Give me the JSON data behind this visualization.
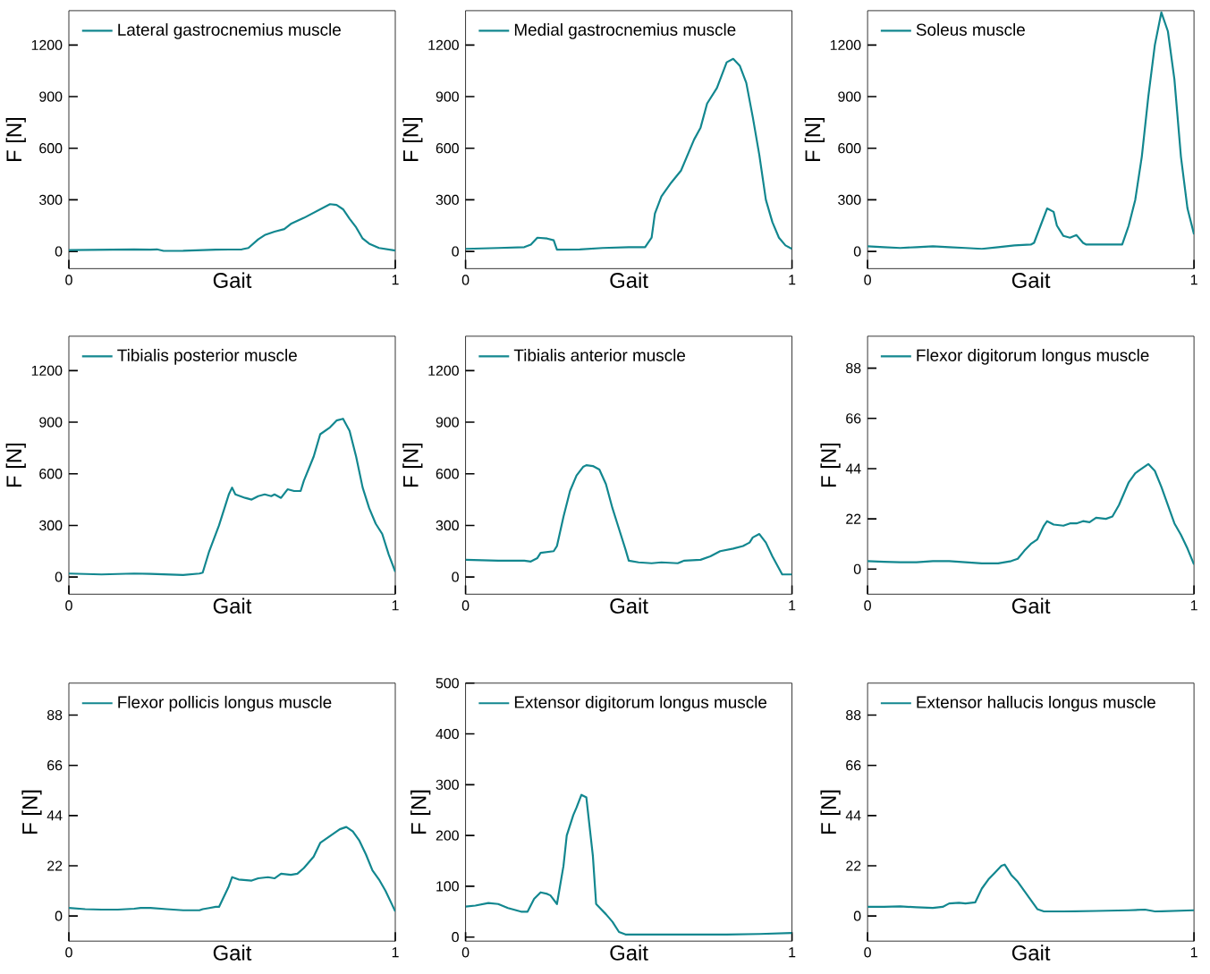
{
  "chart_data": [
    {
      "type": "line",
      "xlabel": "Gait",
      "ylabel": "F [N]",
      "xlim": [
        0,
        1
      ],
      "xticks": [
        0,
        1
      ],
      "ylim": [
        -100,
        1400
      ],
      "yticks": [
        0,
        300,
        600,
        900,
        1200
      ],
      "legend": "top left",
      "series": [
        {
          "name": "Lateral gastrocnemius muscle",
          "color": "#12878f",
          "x": [
            0,
            0.1,
            0.2,
            0.25,
            0.27,
            0.29,
            0.35,
            0.45,
            0.53,
            0.55,
            0.58,
            0.6,
            0.63,
            0.66,
            0.68,
            0.72,
            0.76,
            0.78,
            0.8,
            0.82,
            0.84,
            0.86,
            0.88,
            0.9,
            0.92,
            0.95,
            1.0
          ],
          "values": [
            8,
            10,
            12,
            10,
            12,
            3,
            4,
            10,
            12,
            20,
            70,
            95,
            115,
            130,
            160,
            195,
            235,
            255,
            275,
            270,
            245,
            190,
            140,
            75,
            45,
            20,
            5
          ]
        }
      ]
    },
    {
      "type": "line",
      "xlabel": "Gait",
      "ylabel": "F [N]",
      "xlim": [
        0,
        1
      ],
      "xticks": [
        0,
        1
      ],
      "ylim": [
        -100,
        1400
      ],
      "yticks": [
        0,
        300,
        600,
        900,
        1200
      ],
      "legend": "top left",
      "series": [
        {
          "name": "Medial gastrocnemius muscle",
          "color": "#12878f",
          "x": [
            0,
            0.1,
            0.18,
            0.2,
            0.22,
            0.25,
            0.27,
            0.28,
            0.35,
            0.42,
            0.5,
            0.55,
            0.57,
            0.58,
            0.6,
            0.63,
            0.66,
            0.68,
            0.7,
            0.72,
            0.74,
            0.77,
            0.8,
            0.82,
            0.84,
            0.86,
            0.88,
            0.9,
            0.92,
            0.94,
            0.96,
            0.98,
            1.0
          ],
          "values": [
            15,
            20,
            25,
            40,
            80,
            75,
            65,
            10,
            12,
            20,
            25,
            25,
            80,
            220,
            320,
            400,
            470,
            560,
            650,
            720,
            860,
            950,
            1100,
            1120,
            1080,
            980,
            780,
            560,
            300,
            170,
            80,
            35,
            15
          ]
        }
      ]
    },
    {
      "type": "line",
      "xlabel": "Gait",
      "ylabel": "F [N]",
      "xlim": [
        0,
        1
      ],
      "xticks": [
        0,
        1
      ],
      "ylim": [
        -100,
        1400
      ],
      "yticks": [
        0,
        300,
        600,
        900,
        1200
      ],
      "legend": "top left",
      "series": [
        {
          "name": "Soleus muscle",
          "color": "#12878f",
          "x": [
            0,
            0.05,
            0.1,
            0.15,
            0.2,
            0.25,
            0.3,
            0.35,
            0.4,
            0.45,
            0.5,
            0.51,
            0.53,
            0.55,
            0.57,
            0.58,
            0.6,
            0.62,
            0.64,
            0.66,
            0.67,
            0.72,
            0.78,
            0.8,
            0.82,
            0.84,
            0.86,
            0.88,
            0.9,
            0.92,
            0.94,
            0.96,
            0.98,
            1.0
          ],
          "values": [
            30,
            25,
            20,
            25,
            30,
            25,
            20,
            15,
            25,
            35,
            40,
            50,
            150,
            250,
            230,
            150,
            90,
            80,
            95,
            50,
            40,
            40,
            40,
            150,
            300,
            550,
            900,
            1200,
            1390,
            1280,
            1000,
            550,
            250,
            100
          ]
        }
      ]
    },
    {
      "type": "line",
      "xlabel": "Gait",
      "ylabel": "F [N]",
      "xlim": [
        0,
        1
      ],
      "xticks": [
        0,
        1
      ],
      "ylim": [
        -100,
        1400
      ],
      "yticks": [
        0,
        300,
        600,
        900,
        1200
      ],
      "legend": "top left",
      "series": [
        {
          "name": "Tibialis posterior muscle",
          "color": "#12878f",
          "x": [
            0,
            0.1,
            0.2,
            0.25,
            0.3,
            0.35,
            0.4,
            0.41,
            0.43,
            0.46,
            0.48,
            0.49,
            0.5,
            0.51,
            0.54,
            0.56,
            0.58,
            0.6,
            0.62,
            0.63,
            0.65,
            0.67,
            0.69,
            0.71,
            0.72,
            0.75,
            0.77,
            0.8,
            0.82,
            0.84,
            0.86,
            0.88,
            0.9,
            0.92,
            0.94,
            0.96,
            0.98,
            1.0
          ],
          "values": [
            20,
            15,
            20,
            18,
            15,
            12,
            20,
            25,
            150,
            300,
            420,
            480,
            520,
            480,
            460,
            450,
            470,
            480,
            470,
            480,
            460,
            510,
            500,
            500,
            560,
            700,
            830,
            870,
            910,
            920,
            850,
            700,
            520,
            400,
            310,
            250,
            130,
            30
          ]
        }
      ]
    },
    {
      "type": "line",
      "xlabel": "Gait",
      "ylabel": "F [N]",
      "xlim": [
        0,
        1
      ],
      "xticks": [
        0,
        1
      ],
      "ylim": [
        -100,
        1400
      ],
      "yticks": [
        0,
        300,
        600,
        900,
        1200
      ],
      "legend": "top left",
      "series": [
        {
          "name": "Tibialis anterior muscle",
          "color": "#12878f",
          "x": [
            0,
            0.1,
            0.18,
            0.2,
            0.22,
            0.23,
            0.25,
            0.27,
            0.28,
            0.3,
            0.32,
            0.34,
            0.36,
            0.37,
            0.39,
            0.41,
            0.43,
            0.45,
            0.47,
            0.49,
            0.5,
            0.53,
            0.57,
            0.6,
            0.65,
            0.67,
            0.72,
            0.75,
            0.78,
            0.82,
            0.85,
            0.87,
            0.88,
            0.9,
            0.92,
            0.94,
            0.96,
            0.97,
            1.0
          ],
          "values": [
            100,
            95,
            95,
            90,
            110,
            140,
            145,
            150,
            180,
            350,
            500,
            590,
            640,
            650,
            645,
            625,
            540,
            400,
            280,
            160,
            95,
            85,
            80,
            85,
            80,
            95,
            100,
            120,
            150,
            165,
            180,
            200,
            230,
            250,
            200,
            120,
            50,
            15,
            15
          ]
        }
      ]
    },
    {
      "type": "line",
      "xlabel": "Gait",
      "ylabel": "F [N]",
      "xlim": [
        0,
        1
      ],
      "xticks": [
        0,
        1
      ],
      "ylim": [
        -11,
        102
      ],
      "yticks": [
        0,
        22,
        44,
        66,
        88
      ],
      "legend": "top left",
      "series": [
        {
          "name": "Flexor digitorum longus muscle",
          "color": "#12878f",
          "x": [
            0,
            0.05,
            0.1,
            0.15,
            0.2,
            0.25,
            0.3,
            0.35,
            0.4,
            0.42,
            0.44,
            0.46,
            0.48,
            0.5,
            0.52,
            0.54,
            0.55,
            0.57,
            0.6,
            0.62,
            0.64,
            0.66,
            0.68,
            0.7,
            0.73,
            0.75,
            0.77,
            0.8,
            0.82,
            0.84,
            0.86,
            0.88,
            0.9,
            0.92,
            0.94,
            0.96,
            0.98,
            1.0
          ],
          "values": [
            3.5,
            3.2,
            3,
            3,
            3.5,
            3.5,
            3,
            2.5,
            2.5,
            3,
            3.5,
            4.5,
            8,
            11,
            13,
            19,
            21,
            19.5,
            19,
            20,
            20,
            21,
            20.5,
            22.5,
            22,
            23,
            28,
            38,
            42,
            44,
            46,
            43,
            36,
            28,
            20,
            15,
            9,
            2
          ]
        }
      ]
    },
    {
      "type": "line",
      "xlabel": "Gait",
      "ylabel": "F [N]",
      "xlim": [
        0,
        1
      ],
      "xticks": [
        0,
        1
      ],
      "ylim": [
        -11,
        102
      ],
      "yticks": [
        0,
        22,
        44,
        66,
        88
      ],
      "legend": "top left",
      "series": [
        {
          "name": "Flexor pollicis longus muscle",
          "color": "#12878f",
          "x": [
            0,
            0.05,
            0.1,
            0.15,
            0.2,
            0.22,
            0.25,
            0.3,
            0.35,
            0.4,
            0.41,
            0.43,
            0.45,
            0.46,
            0.47,
            0.49,
            0.5,
            0.52,
            0.56,
            0.58,
            0.61,
            0.63,
            0.65,
            0.68,
            0.7,
            0.72,
            0.75,
            0.77,
            0.8,
            0.83,
            0.85,
            0.87,
            0.89,
            0.91,
            0.93,
            0.95,
            0.97,
            0.99,
            1.0
          ],
          "values": [
            3.5,
            3,
            2.8,
            2.8,
            3.2,
            3.5,
            3.5,
            3,
            2.5,
            2.5,
            3,
            3.5,
            4,
            4,
            7,
            13,
            17,
            16,
            15.5,
            16.5,
            17,
            16.5,
            18.5,
            18,
            18.5,
            21,
            26,
            32,
            35,
            38,
            39,
            37,
            33,
            27,
            20,
            16,
            11,
            5,
            2
          ]
        }
      ]
    },
    {
      "type": "line",
      "xlabel": "Gait",
      "ylabel": "F [N]",
      "xlim": [
        0,
        1
      ],
      "xticks": [
        0,
        1
      ],
      "ylim": [
        -8,
        500
      ],
      "yticks": [
        0,
        100,
        200,
        300,
        400,
        500
      ],
      "legend": "top left",
      "series": [
        {
          "name": "Extensor digitorum longus muscle",
          "color": "#12878f",
          "x": [
            0,
            0.03,
            0.07,
            0.1,
            0.13,
            0.17,
            0.19,
            0.21,
            0.23,
            0.25,
            0.26,
            0.28,
            0.3,
            0.31,
            0.33,
            0.34,
            0.355,
            0.37,
            0.39,
            0.4,
            0.43,
            0.45,
            0.47,
            0.49,
            0.6,
            0.7,
            0.8,
            0.9,
            1.0
          ],
          "values": [
            60,
            62,
            67,
            65,
            57,
            50,
            50,
            75,
            88,
            85,
            82,
            65,
            140,
            200,
            240,
            255,
            280,
            275,
            160,
            65,
            45,
            30,
            10,
            5,
            5,
            5,
            5,
            6,
            8
          ]
        }
      ]
    },
    {
      "type": "line",
      "xlabel": "Gait",
      "ylabel": "F [N]",
      "xlim": [
        0,
        1
      ],
      "xticks": [
        0,
        1
      ],
      "ylim": [
        -11,
        102
      ],
      "yticks": [
        0,
        22,
        44,
        66,
        88
      ],
      "legend": "top left",
      "series": [
        {
          "name": "Extensor hallucis longus muscle",
          "color": "#12878f",
          "x": [
            0,
            0.05,
            0.1,
            0.15,
            0.2,
            0.23,
            0.25,
            0.28,
            0.3,
            0.33,
            0.35,
            0.37,
            0.39,
            0.41,
            0.42,
            0.44,
            0.46,
            0.48,
            0.5,
            0.52,
            0.54,
            0.6,
            0.7,
            0.8,
            0.85,
            0.88,
            1.0
          ],
          "values": [
            4,
            4,
            4.2,
            3.8,
            3.5,
            4,
            5.5,
            5.8,
            5.5,
            6,
            12,
            16,
            19,
            22,
            22.5,
            18,
            15,
            11,
            7,
            3,
            2,
            2,
            2.2,
            2.5,
            2.8,
            2,
            2.5
          ]
        }
      ]
    }
  ]
}
